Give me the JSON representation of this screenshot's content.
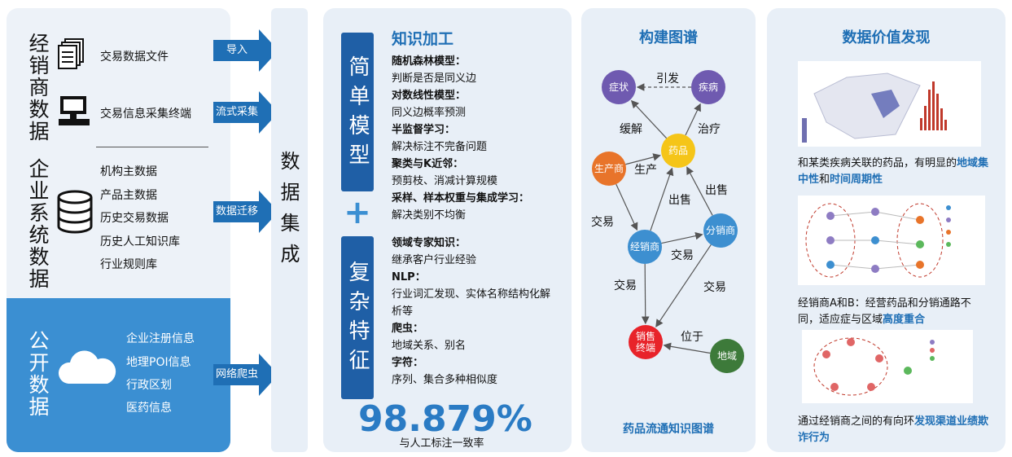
{
  "sources": [
    {
      "title": "经销商数据",
      "items": [
        "交易数据文件",
        "交易信息采集终端"
      ],
      "channels": [
        "导入",
        "流式采集"
      ]
    },
    {
      "title": "企业系统数据",
      "items": [
        "机构主数据",
        "产品主数据",
        "历史交易数据",
        "历史人工知识库",
        "行业规则库"
      ],
      "channels": [
        "数据迁移"
      ]
    },
    {
      "title": "公开数据",
      "items": [
        "企业注册信息",
        "地理POI信息",
        "行政区划",
        "医药信息"
      ],
      "channels": [
        "网络爬虫"
      ]
    }
  ],
  "integration": "数据集成",
  "processing": {
    "title": "知识加工",
    "simple": {
      "label": "简单模型",
      "methods": [
        {
          "name": "随机森林模型：",
          "purpose": "判断是否是同义边"
        },
        {
          "name": "对数线性模型：",
          "purpose": "同义边概率预测"
        },
        {
          "name": "半监督学习：",
          "purpose": "解决标注不完备问题"
        },
        {
          "name": "聚类与K近邻：",
          "purpose": "预剪枝、消减计算规模"
        },
        {
          "name": "采样、样本权重与集成学习：",
          "purpose": "解决类别不均衡"
        }
      ]
    },
    "plus": "+",
    "complex": {
      "label": "复杂特征",
      "methods": [
        {
          "name": "领域专家知识：",
          "purpose": "继承客户行业经验"
        },
        {
          "name": "NLP：",
          "purpose": "行业词汇发现、实体名称结构化解析等"
        },
        {
          "name": "爬虫：",
          "purpose": "地域关系、别名"
        },
        {
          "name": "字符：",
          "purpose": "序列、集合多种相似度"
        }
      ]
    },
    "accuracy": "98.879%",
    "accuracy_caption": "与人工标注一致率"
  },
  "graph": {
    "title": "构建图谱",
    "nodes": [
      "症状",
      "疾病",
      "药品",
      "生产商",
      "分销商",
      "经销商",
      "销售终端",
      "地域"
    ],
    "edges": [
      "引发",
      "缓解",
      "治疗",
      "生产",
      "出售",
      "出售",
      "交易",
      "交易",
      "交易",
      "交易",
      "位于"
    ],
    "caption": "药品流通知识图谱"
  },
  "value": {
    "title": "数据价值发现",
    "findings": [
      [
        {
          "text": "和某类疾病关联的药品，有明显的"
        },
        {
          "highlight": "地域集中性"
        },
        {
          "text": "和"
        },
        {
          "highlight": "时间周期性"
        }
      ],
      [
        {
          "text": "经销商A和B：经营药品和分销通路不同，适应症与区域"
        },
        {
          "highlight": "高度重合"
        }
      ],
      [
        {
          "text": "通过经销商之间的有向环"
        },
        {
          "highlight": "发现渠道业绩欺诈行为"
        }
      ]
    ]
  }
}
